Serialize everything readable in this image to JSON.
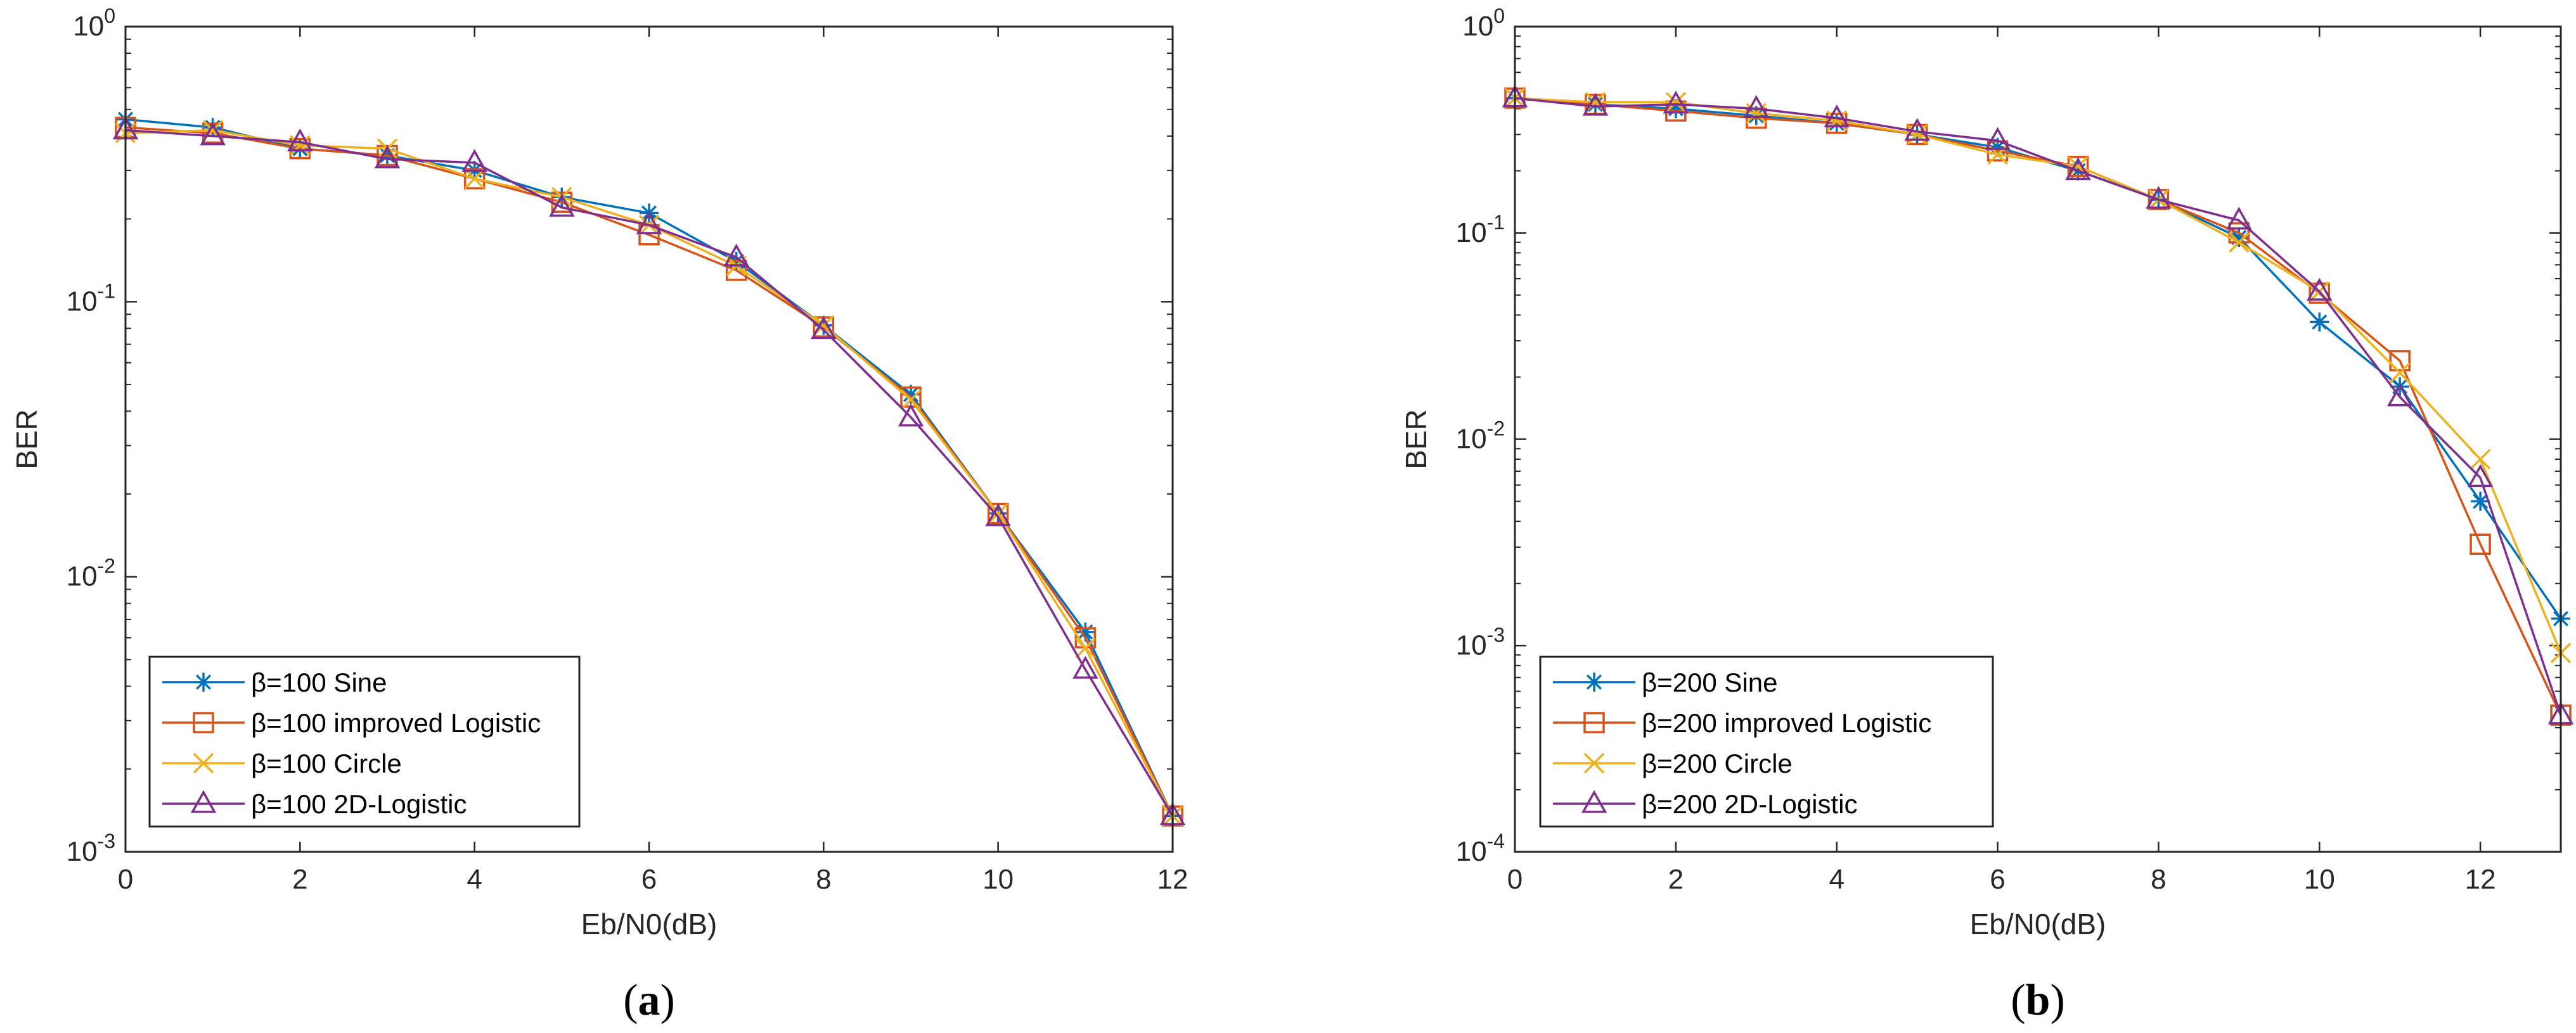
{
  "colors": {
    "sine": "#0072BD",
    "logistic": "#D95319",
    "circle": "#EDB120",
    "twod": "#7E2F8E",
    "axis": "#262626"
  },
  "chart_data": [
    {
      "type": "line",
      "panel": "a",
      "caption": {
        "open": "(",
        "letter": "a",
        "close": ")"
      },
      "xlabel": "Eb/N0(dB)",
      "ylabel": "BER",
      "yscale": "log",
      "xlim": [
        0,
        12
      ],
      "ylim": [
        0.001,
        1
      ],
      "xticks": [
        0,
        2,
        4,
        6,
        8,
        10,
        12
      ],
      "yticks": [
        {
          "value": 1,
          "base": "10",
          "exp": "0"
        },
        {
          "value": 0.1,
          "base": "10",
          "exp": "-1"
        },
        {
          "value": 0.01,
          "base": "10",
          "exp": "-2"
        },
        {
          "value": 0.001,
          "base": "10",
          "exp": "-3"
        }
      ],
      "legend_position": "bottom-left",
      "x": [
        0,
        1,
        2,
        3,
        4,
        5,
        6,
        7,
        8,
        9,
        10,
        11,
        12
      ],
      "series": [
        {
          "name": "β=100 Sine",
          "marker": "asterisk",
          "color_key": "sine",
          "values": [
            0.46,
            0.43,
            0.36,
            0.34,
            0.3,
            0.24,
            0.21,
            0.14,
            0.082,
            0.046,
            0.017,
            0.0063,
            0.00135
          ]
        },
        {
          "name": "β=100 improved Logistic",
          "marker": "square",
          "color_key": "logistic",
          "values": [
            0.43,
            0.41,
            0.36,
            0.34,
            0.28,
            0.23,
            0.175,
            0.13,
            0.081,
            0.045,
            0.017,
            0.006,
            0.00135
          ]
        },
        {
          "name": "β=100 Circle",
          "marker": "x",
          "color_key": "circle",
          "values": [
            0.41,
            0.42,
            0.37,
            0.36,
            0.28,
            0.24,
            0.19,
            0.135,
            0.082,
            0.044,
            0.017,
            0.0055,
            0.00135
          ]
        },
        {
          "name": "β=100 2D-Logistic",
          "marker": "triangle",
          "color_key": "twod",
          "values": [
            0.42,
            0.4,
            0.38,
            0.33,
            0.32,
            0.22,
            0.19,
            0.145,
            0.079,
            0.038,
            0.0165,
            0.0046,
            0.00135
          ]
        }
      ]
    },
    {
      "type": "line",
      "panel": "b",
      "caption": {
        "open": "(",
        "letter": "b",
        "close": ")"
      },
      "xlabel": "Eb/N0(dB)",
      "ylabel": "BER",
      "yscale": "log",
      "xlim": [
        0,
        13
      ],
      "ylim": [
        0.0001,
        1
      ],
      "xticks": [
        0,
        2,
        4,
        6,
        8,
        10,
        12
      ],
      "yticks": [
        {
          "value": 1,
          "base": "10",
          "exp": "0"
        },
        {
          "value": 0.1,
          "base": "10",
          "exp": "-1"
        },
        {
          "value": 0.01,
          "base": "10",
          "exp": "-2"
        },
        {
          "value": 0.001,
          "base": "10",
          "exp": "-3"
        },
        {
          "value": 0.0001,
          "base": "10",
          "exp": "-4"
        }
      ],
      "legend_position": "bottom-left",
      "x": [
        0,
        1,
        2,
        3,
        4,
        5,
        6,
        7,
        8,
        9,
        10,
        11,
        12,
        13
      ],
      "series": [
        {
          "name": "β=200 Sine",
          "marker": "asterisk",
          "color_key": "sine",
          "values": [
            0.45,
            0.42,
            0.4,
            0.37,
            0.34,
            0.3,
            0.26,
            0.2,
            0.145,
            0.095,
            0.037,
            0.018,
            0.005,
            0.00135
          ]
        },
        {
          "name": "β=200 improved Logistic",
          "marker": "square",
          "color_key": "logistic",
          "values": [
            0.45,
            0.42,
            0.39,
            0.36,
            0.34,
            0.3,
            0.25,
            0.21,
            0.145,
            0.1,
            0.051,
            0.024,
            0.0031,
            0.00046
          ]
        },
        {
          "name": "β=200 Circle",
          "marker": "x",
          "color_key": "circle",
          "values": [
            0.45,
            0.43,
            0.43,
            0.38,
            0.35,
            0.3,
            0.24,
            0.21,
            0.145,
            0.09,
            0.052,
            0.021,
            0.008,
            0.00092
          ]
        },
        {
          "name": "β=200 2D-Logistic",
          "marker": "triangle",
          "color_key": "twod",
          "values": [
            0.45,
            0.41,
            0.42,
            0.4,
            0.36,
            0.31,
            0.28,
            0.2,
            0.145,
            0.115,
            0.052,
            0.016,
            0.0065,
            0.00046
          ]
        }
      ]
    }
  ]
}
